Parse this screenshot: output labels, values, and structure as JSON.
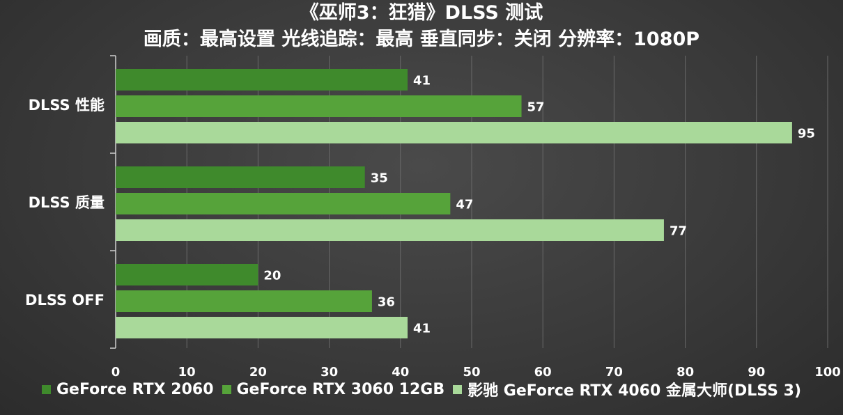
{
  "chart_data": {
    "type": "bar",
    "orientation": "horizontal",
    "title": "《巫师3：狂猎》DLSS 测试",
    "subtitle": "画质：最高设置 光线追踪：最高  垂直同步：关闭 分辨率：1080P",
    "categories": [
      "DLSS 性能",
      "DLSS 质量",
      "DLSS OFF"
    ],
    "series": [
      {
        "name": "GeForce RTX 2060",
        "values": [
          41,
          35,
          20
        ],
        "color": "#3f8a2c"
      },
      {
        "name": "GeForce RTX 3060 12GB",
        "values": [
          57,
          47,
          36
        ],
        "color": "#56a33a"
      },
      {
        "name": "影驰 GeForce RTX 4060 金属大师(DLSS 3)",
        "values": [
          95,
          77,
          41
        ],
        "color": "#a9d99a"
      }
    ],
    "xlim": [
      0,
      100
    ],
    "xticks": [
      0,
      10,
      20,
      30,
      40,
      50,
      60,
      70,
      80,
      90,
      100
    ],
    "grid": true,
    "legend_position": "bottom",
    "data_labels": true
  },
  "colors": {
    "background": "#3d3d3d",
    "gridline": "#6a6a6a",
    "axis": "#cfcfcf",
    "text": "#ffffff"
  }
}
